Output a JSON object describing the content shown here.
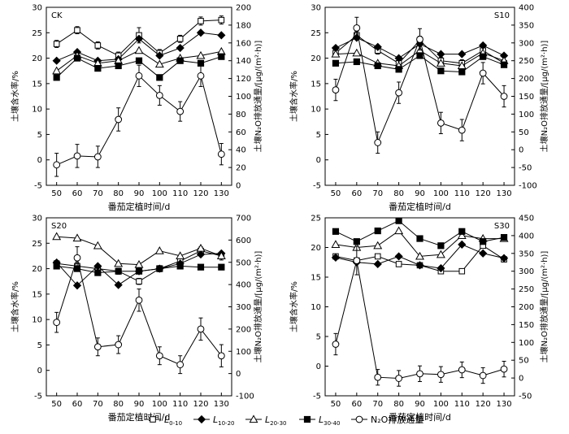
{
  "figure": {
    "x_label": "番茄定植时间/d",
    "y_left_label": "土壤含水率/%",
    "y_right_label": "土壤N₂O排放通量/[μg/(m²·h)]"
  },
  "legend": {
    "items": [
      {
        "key": "L0_10",
        "base": "L",
        "sub": "0-10",
        "marker": "open-square"
      },
      {
        "key": "L10_20",
        "base": "L",
        "sub": "10-20",
        "marker": "filled-diamond"
      },
      {
        "key": "L20_30",
        "base": "L",
        "sub": "20-30",
        "marker": "open-triangle"
      },
      {
        "key": "L30_40",
        "base": "L",
        "sub": "30-40",
        "marker": "filled-square"
      },
      {
        "key": "N2O",
        "base": "N₂O排放通量",
        "sub": "",
        "marker": "open-circle"
      }
    ]
  },
  "chart_data": [
    {
      "type": "line",
      "panel_label": "CK",
      "x": [
        50,
        60,
        70,
        80,
        90,
        100,
        110,
        120,
        130
      ],
      "x_ticks": [
        50,
        60,
        70,
        80,
        90,
        100,
        110,
        120,
        130
      ],
      "y_left_range": [
        -5,
        30
      ],
      "y_left_ticks": [
        -5,
        0,
        5,
        10,
        15,
        20,
        25,
        30
      ],
      "y_right_range": [
        0,
        200
      ],
      "y_right_ticks": [
        0,
        20,
        40,
        60,
        80,
        100,
        120,
        140,
        160,
        180,
        200
      ],
      "series": [
        {
          "name": "L0-10",
          "axis": "left",
          "values": [
            22.8,
            25.5,
            22.5,
            20.5,
            24.5,
            21.0,
            23.8,
            27.3,
            27.5
          ],
          "errors": [
            0.7,
            0.7,
            0.7,
            0.7,
            1.5,
            0.7,
            0.7,
            0.8,
            0.8
          ]
        },
        {
          "name": "L10-20",
          "axis": "left",
          "values": [
            19.5,
            21.2,
            19.5,
            19.8,
            23.8,
            20.5,
            22.0,
            25.0,
            24.5
          ]
        },
        {
          "name": "L20-30",
          "axis": "left",
          "values": [
            17.5,
            20.5,
            19.0,
            19.5,
            21.5,
            18.8,
            20.0,
            20.5,
            21.3
          ]
        },
        {
          "name": "L30-40",
          "axis": "left",
          "values": [
            16.2,
            20.0,
            18.0,
            18.5,
            19.5,
            16.2,
            19.5,
            19.0,
            20.3
          ]
        },
        {
          "name": "N2O",
          "axis": "right",
          "values": [
            23,
            33,
            32,
            74,
            123,
            101,
            83,
            123,
            35
          ],
          "errors": [
            13,
            13,
            12,
            13,
            12,
            11,
            11,
            12,
            12
          ]
        }
      ]
    },
    {
      "type": "line",
      "panel_label": "S10",
      "x": [
        50,
        60,
        70,
        80,
        90,
        100,
        110,
        120,
        130
      ],
      "x_ticks": [
        50,
        60,
        70,
        80,
        90,
        100,
        110,
        120,
        130
      ],
      "y_left_range": [
        -5,
        30
      ],
      "y_left_ticks": [
        -5,
        0,
        5,
        10,
        15,
        20,
        25,
        30
      ],
      "y_right_range": [
        -100,
        400
      ],
      "y_right_ticks": [
        -100,
        -50,
        0,
        50,
        100,
        150,
        200,
        250,
        300,
        350,
        400
      ],
      "series": [
        {
          "name": "L0-10",
          "axis": "left",
          "values": [
            21.0,
            24.5,
            21.5,
            19.0,
            23.5,
            19.5,
            19.0,
            21.5,
            19.0
          ],
          "errors": [
            0.7,
            0.8,
            0.7,
            0.7,
            0.8,
            0.7,
            0.7,
            0.7,
            0.7
          ]
        },
        {
          "name": "L10-20",
          "axis": "left",
          "values": [
            22.0,
            24.0,
            22.2,
            20.0,
            22.8,
            20.8,
            20.8,
            22.5,
            20.5
          ]
        },
        {
          "name": "L20-30",
          "axis": "left",
          "values": [
            20.8,
            21.0,
            19.0,
            18.5,
            21.5,
            19.0,
            18.5,
            21.0,
            19.5
          ]
        },
        {
          "name": "L30-40",
          "axis": "left",
          "values": [
            19.0,
            19.3,
            18.5,
            17.8,
            20.5,
            17.5,
            17.3,
            20.3,
            18.7
          ]
        },
        {
          "name": "N2O",
          "axis": "right",
          "values": [
            168,
            342,
            20,
            160,
            310,
            75,
            55,
            215,
            150
          ],
          "errors": [
            30,
            30,
            30,
            30,
            30,
            30,
            30,
            30,
            30
          ]
        }
      ]
    },
    {
      "type": "line",
      "panel_label": "S20",
      "x": [
        50,
        60,
        70,
        80,
        90,
        100,
        110,
        120,
        130
      ],
      "x_ticks": [
        50,
        60,
        70,
        80,
        90,
        100,
        110,
        120,
        130
      ],
      "y_left_range": [
        -5,
        30
      ],
      "y_left_ticks": [
        -5,
        0,
        5,
        10,
        15,
        20,
        25,
        30
      ],
      "y_right_range": [
        -100,
        700
      ],
      "y_right_ticks": [
        -100,
        0,
        100,
        200,
        300,
        400,
        500,
        600,
        700
      ],
      "series": [
        {
          "name": "L0-10",
          "axis": "left",
          "values": [
            21.0,
            20.5,
            20.0,
            19.5,
            17.5,
            20.0,
            21.5,
            23.5,
            22.5
          ],
          "errors": [
            0.6,
            0.6,
            0.6,
            0.6,
            0.6,
            0.6,
            0.6,
            0.8,
            0.8
          ]
        },
        {
          "name": "L10-20",
          "axis": "left",
          "values": [
            21.2,
            16.7,
            20.5,
            16.8,
            19.5,
            20.0,
            21.0,
            22.8,
            23.0
          ]
        },
        {
          "name": "L20-30",
          "axis": "left",
          "values": [
            26.3,
            26.0,
            24.5,
            21.0,
            20.8,
            23.5,
            22.5,
            24.0,
            22.5
          ]
        },
        {
          "name": "L30-40",
          "axis": "left",
          "values": [
            20.5,
            20.0,
            19.2,
            19.5,
            19.5,
            20.0,
            20.5,
            20.3,
            20.3
          ]
        },
        {
          "name": "N2O",
          "axis": "right",
          "values": [
            230,
            520,
            120,
            130,
            330,
            80,
            40,
            200,
            80
          ],
          "errors": [
            45,
            50,
            40,
            40,
            50,
            40,
            40,
            50,
            50
          ]
        }
      ]
    },
    {
      "type": "line",
      "panel_label": "S30",
      "x": [
        50,
        60,
        70,
        80,
        90,
        100,
        110,
        120,
        130
      ],
      "x_ticks": [
        50,
        60,
        70,
        80,
        90,
        100,
        110,
        120,
        130
      ],
      "y_left_range": [
        -5,
        25
      ],
      "y_left_ticks": [
        -5,
        0,
        5,
        10,
        15,
        20,
        25
      ],
      "y_right_range": [
        -50,
        450
      ],
      "y_right_ticks": [
        -50,
        0,
        50,
        100,
        150,
        200,
        250,
        300,
        350,
        400,
        450
      ],
      "series": [
        {
          "name": "L0-10",
          "axis": "left",
          "values": [
            18.5,
            17.8,
            18.5,
            17.2,
            17.0,
            16.0,
            16.0,
            20.3,
            18.0
          ],
          "errors": [
            0.4,
            0.4,
            0.4,
            0.4,
            0.4,
            0.4,
            0.4,
            0.4,
            0.4
          ]
        },
        {
          "name": "L10-20",
          "axis": "left",
          "values": [
            18.3,
            17.5,
            17.2,
            18.5,
            17.0,
            16.5,
            20.5,
            19.0,
            18.2
          ]
        },
        {
          "name": "L20-30",
          "axis": "left",
          "values": [
            20.5,
            20.0,
            20.3,
            22.8,
            18.5,
            18.8,
            22.0,
            21.5,
            21.5
          ]
        },
        {
          "name": "L30-40",
          "axis": "left",
          "values": [
            22.7,
            21.0,
            22.8,
            24.5,
            21.5,
            20.3,
            22.7,
            21.0,
            21.7
          ]
        },
        {
          "name": "N2O",
          "axis": "right",
          "values": [
            95,
            330,
            2,
            -1,
            12,
            10,
            23,
            7,
            25
          ],
          "errors": [
            30,
            40,
            22,
            22,
            22,
            22,
            22,
            22,
            22
          ]
        }
      ]
    }
  ]
}
